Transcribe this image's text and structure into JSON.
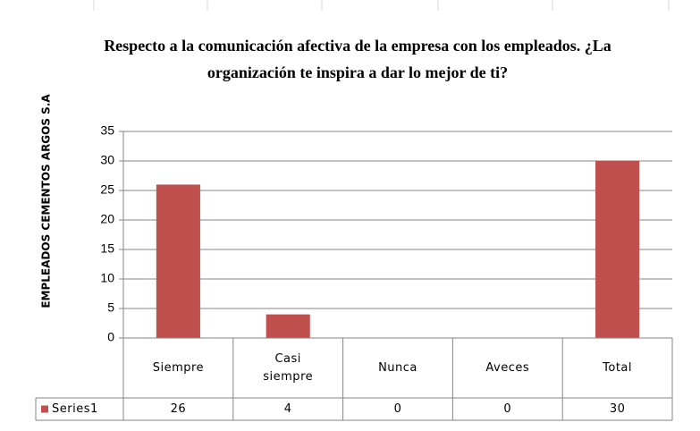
{
  "chart_data": {
    "type": "bar",
    "title": "Respecto a la comunicación  afectiva de la empresa con los empleados. ¿La organización  te inspira  a dar lo mejor  de ti?",
    "y_label": "EMPLEADOS CEMENTOS ARGOS S.A",
    "categories": [
      "Siempre",
      "Casi siempre",
      "Nunca",
      "Aveces",
      "Total"
    ],
    "series": [
      {
        "name": "Series1",
        "color": "#c0504d",
        "values": [
          26,
          4,
          0,
          0,
          30
        ]
      }
    ],
    "ylim": [
      0,
      35
    ],
    "yticks": [
      0,
      5,
      10,
      15,
      20,
      25,
      30,
      35
    ],
    "grid": true
  }
}
